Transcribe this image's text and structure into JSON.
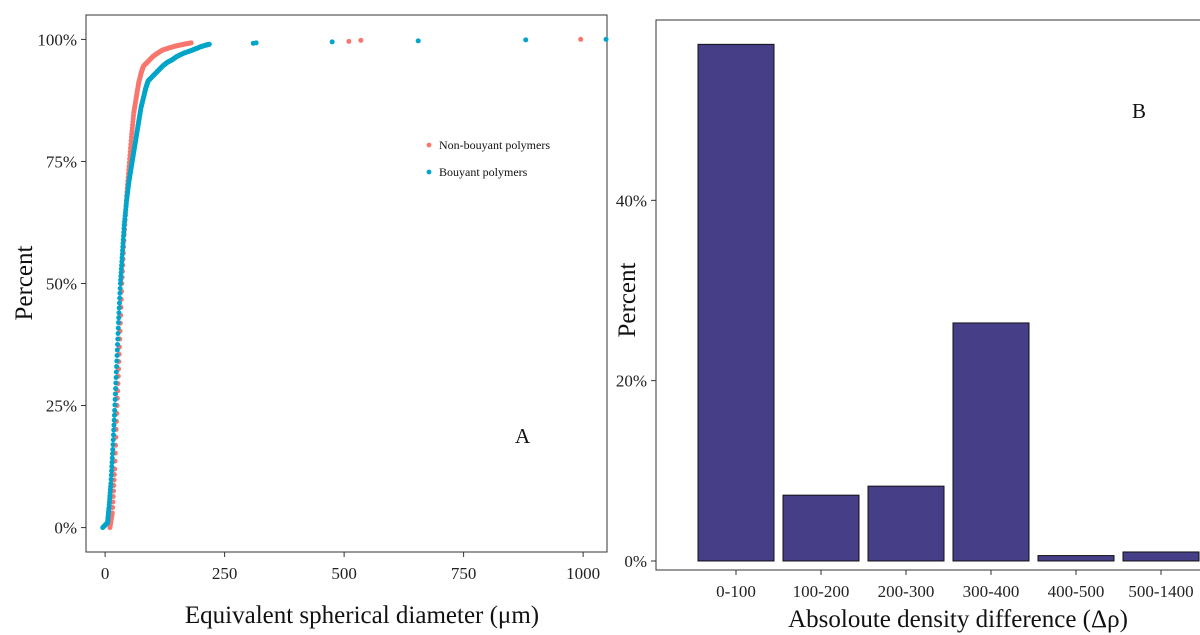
{
  "chart_data": [
    {
      "type": "scatter",
      "panel_label": "A",
      "xlabel": "Equivalent spherical diameter (μm)",
      "ylabel": "Percent",
      "xlim": [
        -40,
        1050
      ],
      "ylim": [
        -5,
        105
      ],
      "x_ticks": [
        0,
        250,
        500,
        750,
        1000
      ],
      "x_tick_labels": [
        "0",
        "250",
        "500",
        "750",
        "1000"
      ],
      "y_ticks": [
        0,
        25,
        50,
        75,
        100
      ],
      "y_tick_labels": [
        "0%",
        "25%",
        "50%",
        "75%",
        "100%"
      ],
      "grid": false,
      "legend_position": "top-right",
      "series": [
        {
          "name": "Non-bouyant polymers",
          "color": "#F8766D",
          "curve": [
            [
              10,
              0
            ],
            [
              15,
              3
            ],
            [
              20,
              12
            ],
            [
              25,
              25
            ],
            [
              30,
              37
            ],
            [
              35,
              50
            ],
            [
              40,
              60
            ],
            [
              45,
              68
            ],
            [
              50,
              74
            ],
            [
              55,
              80
            ],
            [
              60,
              85
            ],
            [
              65,
              88
            ],
            [
              70,
              91
            ],
            [
              75,
              93
            ],
            [
              80,
              94.5
            ],
            [
              90,
              95.5
            ],
            [
              100,
              96.5
            ],
            [
              110,
              97.2
            ],
            [
              120,
              97.8
            ],
            [
              135,
              98.3
            ],
            [
              150,
              98.7
            ],
            [
              165,
              99
            ],
            [
              180,
              99.3
            ]
          ],
          "points": [
            [
              510,
              99.6
            ],
            [
              535,
              99.8
            ],
            [
              995,
              100
            ]
          ]
        },
        {
          "name": "Bouyant polymers",
          "color": "#00A5C9",
          "curve": [
            [
              -5,
              0
            ],
            [
              5,
              1
            ],
            [
              8,
              4
            ],
            [
              12,
              9
            ],
            [
              16,
              16
            ],
            [
              20,
              24
            ],
            [
              24,
              33
            ],
            [
              28,
              42
            ],
            [
              32,
              50
            ],
            [
              36,
              56
            ],
            [
              40,
              62
            ],
            [
              45,
              67
            ],
            [
              50,
              71
            ],
            [
              55,
              74
            ],
            [
              60,
              77
            ],
            [
              65,
              80
            ],
            [
              70,
              83
            ],
            [
              75,
              86
            ],
            [
              80,
              88
            ],
            [
              85,
              90
            ],
            [
              90,
              91.5
            ],
            [
              100,
              92.5
            ],
            [
              110,
              93.5
            ],
            [
              120,
              94.5
            ],
            [
              130,
              95.3
            ],
            [
              140,
              95.8
            ],
            [
              150,
              96.5
            ],
            [
              165,
              97.2
            ],
            [
              180,
              97.7
            ],
            [
              190,
              98.1
            ],
            [
              200,
              98.5
            ],
            [
              210,
              98.8
            ],
            [
              218,
              99
            ]
          ],
          "points": [
            [
              310,
              99.2
            ],
            [
              316,
              99.3
            ],
            [
              475,
              99.5
            ],
            [
              655,
              99.7
            ],
            [
              880,
              99.9
            ],
            [
              1048,
              100
            ]
          ]
        }
      ]
    },
    {
      "type": "bar",
      "panel_label": "B",
      "xlabel": "Absoloute density difference (Δρ)",
      "ylabel": "Percent",
      "ylim": [
        -1,
        60
      ],
      "y_ticks": [
        0,
        20,
        40
      ],
      "y_tick_labels": [
        "0%",
        "20%",
        "40%"
      ],
      "grid": false,
      "bar_color": "#463F87",
      "categories": [
        "0-100",
        "100-200",
        "200-300",
        "300-400",
        "400-500",
        "500-1400"
      ],
      "values": [
        57.3,
        7.3,
        8.3,
        26.4,
        0.6,
        1.0
      ]
    }
  ]
}
